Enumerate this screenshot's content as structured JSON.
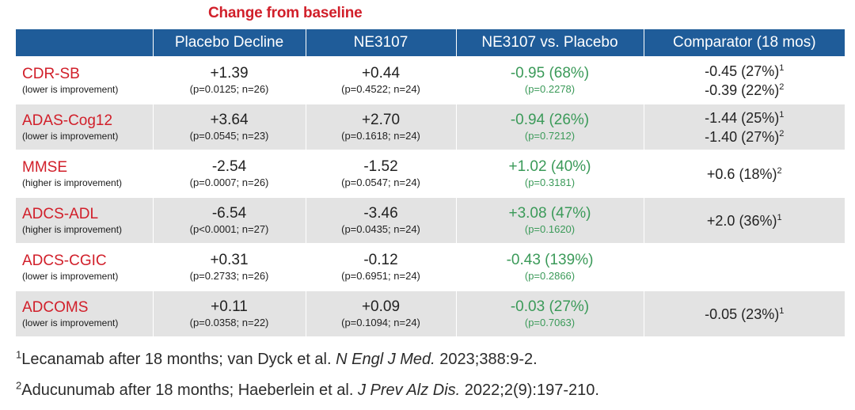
{
  "title": "Change from baseline",
  "headers": [
    "",
    "Placebo Decline",
    "NE3107",
    "NE3107 vs. Placebo",
    "Comparator (18 mos)"
  ],
  "rows": [
    {
      "name": "CDR-SB",
      "note": "(lower is improvement)",
      "placebo": {
        "value": "+1.39",
        "p": "(p=0.0125; n=26)"
      },
      "ne3107": {
        "value": "+0.44",
        "p": "(p=0.4522; n=24)"
      },
      "vs": {
        "value": "-0.95  (68%)",
        "p": "(p=0.2278)"
      },
      "comparator": [
        {
          "text": "-0.45 (27%)",
          "ref": "1"
        },
        {
          "text": "-0.39 (22%)",
          "ref": "2"
        }
      ]
    },
    {
      "name": "ADAS-Cog12",
      "note": "(lower is improvement)",
      "placebo": {
        "value": "+3.64",
        "p": "(p=0.0545; n=23)"
      },
      "ne3107": {
        "value": "+2.70",
        "p": "(p=0.1618; n=24)"
      },
      "vs": {
        "value": "-0.94  (26%)",
        "p": "(p=0.7212)"
      },
      "comparator": [
        {
          "text": "-1.44 (25%)",
          "ref": "1"
        },
        {
          "text": "-1.40 (27%)",
          "ref": "2"
        }
      ]
    },
    {
      "name": "MMSE",
      "note": "(higher is improvement)",
      "placebo": {
        "value": "-2.54",
        "p": "(p=0.0007; n=26)"
      },
      "ne3107": {
        "value": "-1.52",
        "p": "(p=0.0547; n=24)"
      },
      "vs": {
        "value": "+1.02  (40%)",
        "p": "(p=0.3181)"
      },
      "comparator": [
        {
          "text": "+0.6 (18%)",
          "ref": "2"
        }
      ]
    },
    {
      "name": "ADCS-ADL",
      "note": "(higher is improvement)",
      "placebo": {
        "value": "-6.54",
        "p": "(p<0.0001; n=27)"
      },
      "ne3107": {
        "value": "-3.46",
        "p": "(p=0.0435; n=24)"
      },
      "vs": {
        "value": "+3.08  (47%)",
        "p": "(p=0.1620)"
      },
      "comparator": [
        {
          "text": "+2.0 (36%)",
          "ref": "1"
        }
      ]
    },
    {
      "name": "ADCS-CGIC",
      "note": "(lower is improvement)",
      "placebo": {
        "value": "+0.31",
        "p": "(p=0.2733; n=26)"
      },
      "ne3107": {
        "value": "-0.12",
        "p": "(p=0.6951; n=24)"
      },
      "vs": {
        "value": "-0.43  (139%)",
        "p": "(p=0.2866)"
      },
      "comparator": []
    },
    {
      "name": "ADCOMS",
      "note": "(lower is improvement)",
      "placebo": {
        "value": "+0.11",
        "p": "(p=0.0358; n=22)"
      },
      "ne3107": {
        "value": "+0.09",
        "p": "(p=0.1094; n=24)"
      },
      "vs": {
        "value": "-0.03  (27%)",
        "p": "(p=0.7063)"
      },
      "comparator": [
        {
          "text": "-0.05 (23%)",
          "ref": "1"
        }
      ]
    }
  ],
  "footnotes": [
    {
      "num": "1",
      "pre": "Lecanamab after 18 months; van Dyck et al. ",
      "journal": "N Engl J Med.",
      "post": " 2023;388:9-2."
    },
    {
      "num": "2",
      "pre": "Aducunumab after 18 months; Haeberlein et al. ",
      "journal": "J Prev Alz Dis.",
      "post": " 2022;2(9):197-210."
    }
  ],
  "colors": {
    "header_bg": "#1f5c99",
    "label_red": "#d11f2a",
    "improvement_green": "#3b9a59",
    "row_shade": "#e3e3e3"
  }
}
